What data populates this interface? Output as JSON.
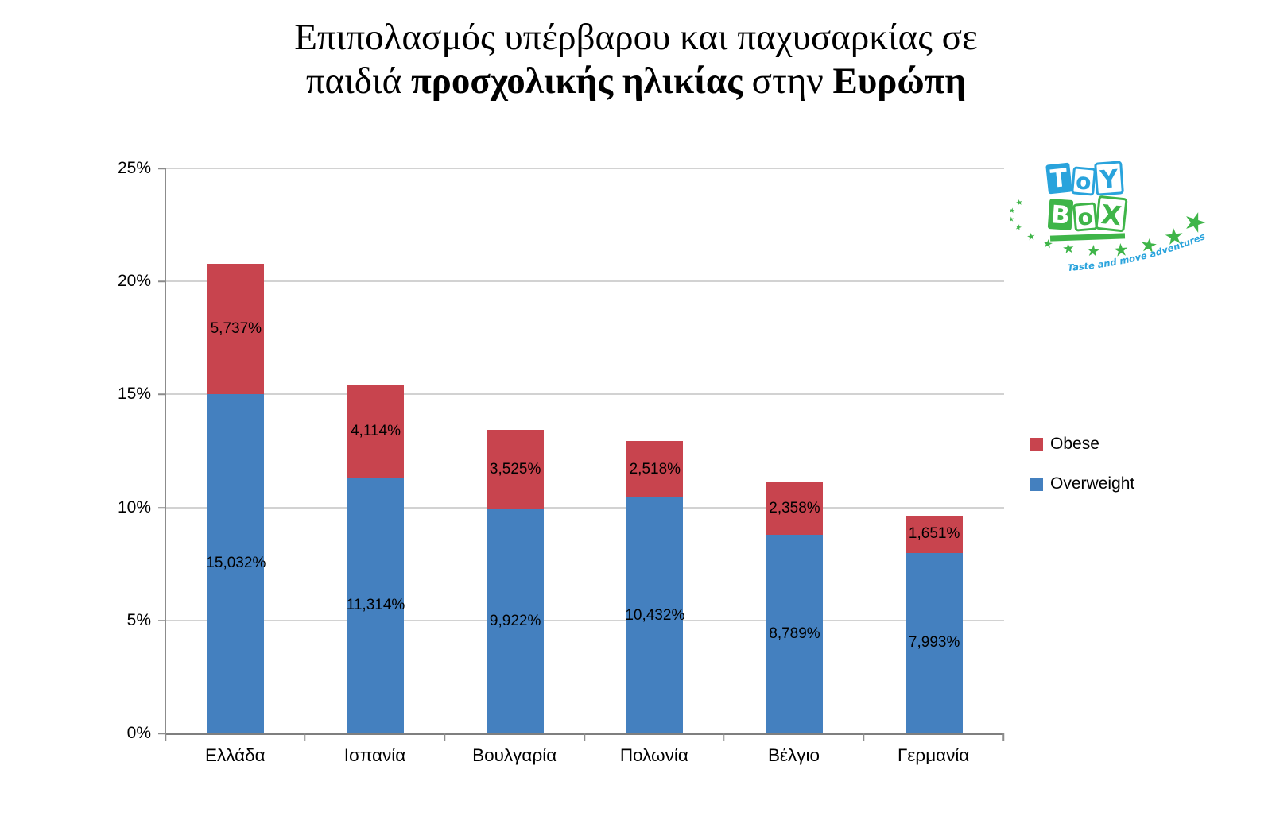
{
  "slide": {
    "background": "#FFFFFF"
  },
  "title": {
    "line1": "Επιπολασμός υπέρβαρου και παχυσαρκίας σε",
    "line2": {
      "regular1": "παιδιά ",
      "bold1": "προσχολικής ηλικίας",
      "regular2": " στην ",
      "bold2": "Ευρώπη"
    }
  },
  "legend": {
    "position": "right",
    "items": [
      {
        "label": "Obese",
        "color": "#C8444E"
      },
      {
        "label": "Overweight",
        "color": "#4480BF"
      }
    ]
  },
  "logo": {
    "word_top": "ToY",
    "word_bottom": "BoX",
    "tagline": "Taste and move adventures",
    "blue": "#29A3DC",
    "green": "#3FB549"
  },
  "chart_data": {
    "type": "bar",
    "stacked": true,
    "categories": [
      "Ελλάδα",
      "Ισπανία",
      "Βουλγαρία",
      "Πολωνία",
      "Βέλγιο",
      "Γερμανία"
    ],
    "series": [
      {
        "name": "Overweight",
        "color": "#4480BF",
        "values": [
          15.032,
          11.314,
          9.922,
          10.432,
          8.789,
          7.993
        ],
        "data_labels": [
          "15,032%",
          "11,314%",
          "9,922%",
          "10,432%",
          "8,789%",
          "7,993%"
        ]
      },
      {
        "name": "Obese",
        "color": "#C8444E",
        "values": [
          5.737,
          4.114,
          3.525,
          2.518,
          2.358,
          1.651
        ],
        "data_labels": [
          "5,737%",
          "4,114%",
          "3,525%",
          "2,518%",
          "2,358%",
          "1,651%"
        ]
      }
    ],
    "totals": [
      20.769,
      15.428,
      13.447,
      12.95,
      11.147,
      9.644
    ],
    "xlabel": "",
    "ylabel": "",
    "ylim": [
      0,
      25
    ],
    "ytick_step": 5,
    "ytick_labels": [
      "0%",
      "5%",
      "10%",
      "15%",
      "20%",
      "25%"
    ],
    "grid": true,
    "gridline_color": "#A6A6A6",
    "axis_color": "#8C8C8C",
    "legend_position": "right"
  }
}
